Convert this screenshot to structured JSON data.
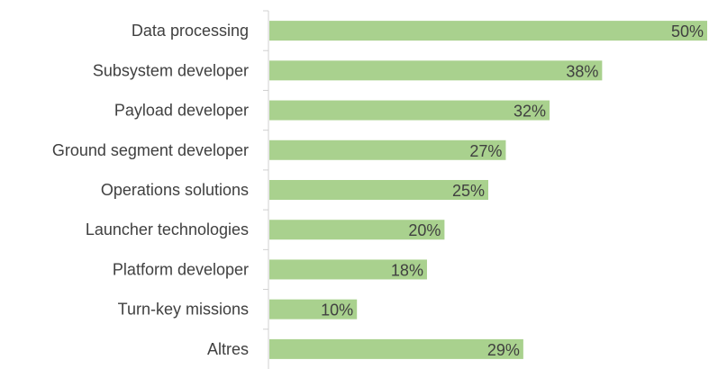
{
  "chart_data": {
    "type": "hbar",
    "categories": [
      "Data processing",
      "Subsystem developer",
      "Payload developer",
      "Ground segment developer",
      "Operations solutions",
      "Launcher technologies",
      "Platform developer",
      "Turn-key missions",
      "Altres"
    ],
    "values": [
      50,
      38,
      32,
      27,
      25,
      20,
      18,
      10,
      29
    ],
    "value_labels": [
      "50%",
      "38%",
      "32%",
      "27%",
      "25%",
      "20%",
      "18%",
      "10%",
      "29%"
    ],
    "color": "#a9d18e"
  }
}
